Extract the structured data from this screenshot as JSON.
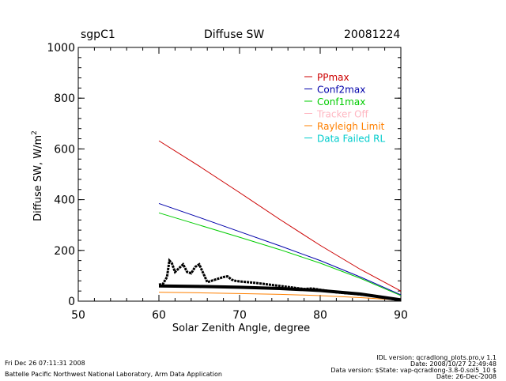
{
  "header": {
    "site": "sgpC1",
    "title": "Diffuse SW",
    "date": "20081224"
  },
  "footer": {
    "left_line1": "Fri Dec 26 07:11:31 2008",
    "left_line2": "Battelle Pacific Northwest National Laboratory, Arm Data Application",
    "right_line1": "IDL version: qcradlong_plots.pro,v 1.1",
    "right_line2": "Date: 2008/10/27 22:49:48",
    "right_line3": "Data version: $State: vap-qcradlong-3.8-0.sol5_10 $",
    "right_line4": "Date: 26-Dec-2008"
  },
  "chart_data": {
    "type": "line",
    "xlabel": "Solar Zenith Angle, degree",
    "ylabel": "Diffuse SW, W/m",
    "ylabel_superscript": "2",
    "xlim": [
      50,
      90
    ],
    "ylim": [
      0,
      1000
    ],
    "xticks": [
      "50",
      "60",
      "70",
      "80",
      "90"
    ],
    "yticks": [
      "0",
      "200",
      "400",
      "600",
      "800",
      "1000"
    ],
    "grid": false,
    "legend_position": "top-right",
    "series": [
      {
        "name": "PPmax",
        "color": "#cc0000",
        "x": [
          60,
          65,
          70,
          75,
          80,
          85,
          90
        ],
        "y": [
          632,
          532,
          428,
          322,
          220,
          125,
          40
        ]
      },
      {
        "name": "Conf2max",
        "color": "#0000aa",
        "x": [
          60,
          65,
          70,
          75,
          80,
          85,
          90
        ],
        "y": [
          385,
          330,
          274,
          218,
          160,
          95,
          25
        ]
      },
      {
        "name": "Conf1max",
        "color": "#00cc00",
        "x": [
          60,
          65,
          70,
          75,
          80,
          85,
          90
        ],
        "y": [
          348,
          300,
          252,
          203,
          150,
          90,
          22
        ]
      },
      {
        "name": "Tracker Off",
        "color": "#ffb6c1",
        "x": [],
        "y": []
      },
      {
        "name": "Rayleigh Limit",
        "color": "#ff8000",
        "x": [
          60,
          65,
          70,
          75,
          80,
          85,
          90
        ],
        "y": [
          35,
          33,
          30,
          27,
          22,
          14,
          4
        ]
      },
      {
        "name": "Data Failed RL",
        "color": "#00cccc",
        "x": [],
        "y": []
      }
    ],
    "measured": {
      "color": "#000000",
      "x": [
        60,
        60.5,
        61,
        61.3,
        61.6,
        62,
        62.5,
        63,
        63.5,
        64,
        64.5,
        65,
        65.5,
        66,
        66.5,
        67,
        67.5,
        68,
        68.5,
        69,
        69.5,
        70,
        71,
        72,
        73,
        74,
        75,
        76,
        77,
        78,
        79,
        80,
        81,
        82,
        83,
        84,
        85,
        86,
        87,
        88,
        89,
        90
      ],
      "y": [
        65,
        68,
        95,
        160,
        150,
        115,
        130,
        145,
        115,
        110,
        135,
        145,
        110,
        75,
        80,
        85,
        90,
        95,
        98,
        85,
        80,
        78,
        75,
        72,
        68,
        64,
        60,
        56,
        52,
        48,
        50,
        45,
        40,
        35,
        32,
        30,
        26,
        24,
        20,
        15,
        8,
        3
      ]
    },
    "baseline": {
      "color": "#000000",
      "x": [
        60,
        65,
        70,
        75,
        80,
        85,
        90
      ],
      "y": [
        60,
        58,
        55,
        50,
        42,
        28,
        5
      ]
    }
  }
}
